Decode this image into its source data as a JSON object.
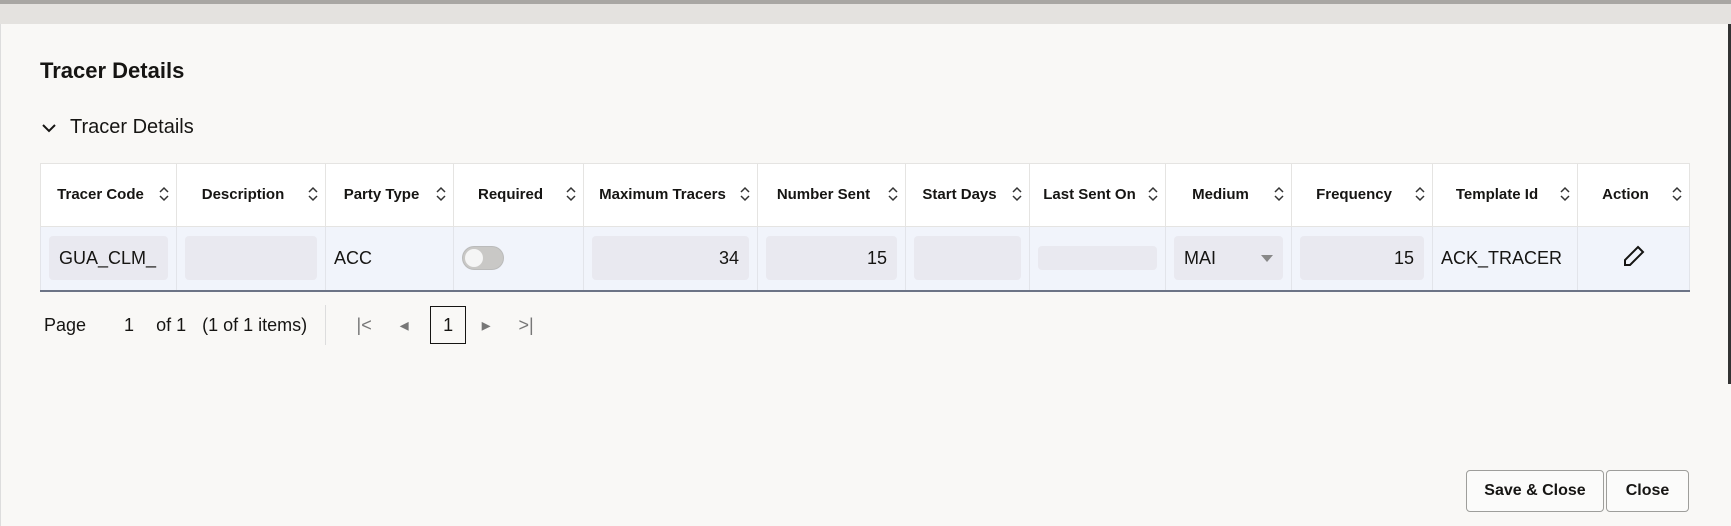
{
  "dialog": {
    "title": "Tracer Details",
    "section_title": "Tracer Details"
  },
  "table": {
    "columns": [
      "Tracer Code",
      "Description",
      "Party Type",
      "Required",
      "Maximum Tracers",
      "Number Sent",
      "Start Days",
      "Last Sent On",
      "Medium",
      "Frequency",
      "Template Id",
      "Action"
    ],
    "row": {
      "tracer_code": "GUA_CLM_",
      "description": "",
      "party_type": "ACC",
      "required": false,
      "maximum_tracers": "34",
      "number_sent": "15",
      "start_days": "",
      "last_sent_on": "",
      "medium": "MAI",
      "frequency": "15",
      "template_id": "ACK_TRACER",
      "action_icon": "pencil-icon"
    }
  },
  "pager": {
    "page_label": "Page",
    "page": "1",
    "of": "of 1",
    "items": "(1 of 1 items)",
    "current": "1"
  },
  "buttons": {
    "save_close": "Save & Close",
    "close": "Close"
  }
}
